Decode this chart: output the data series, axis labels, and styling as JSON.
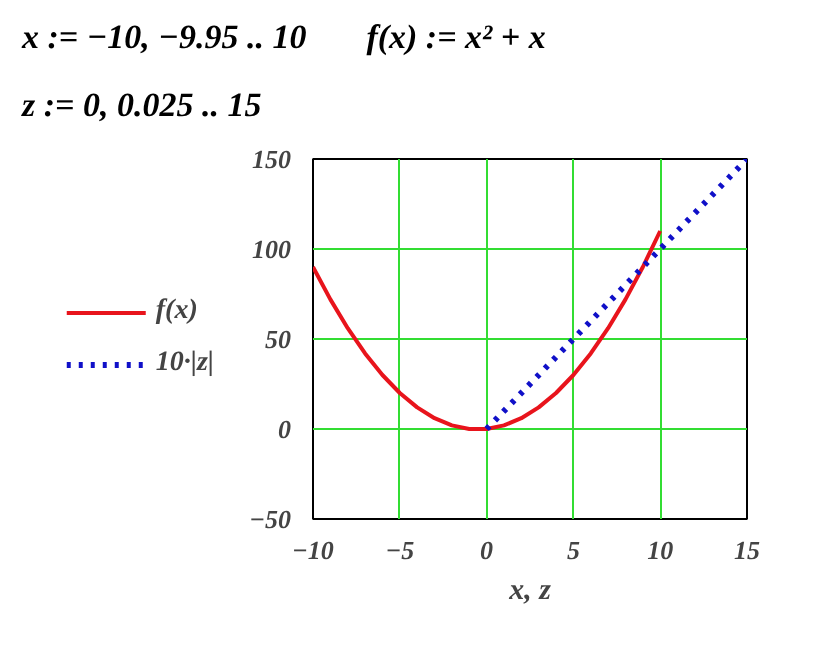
{
  "chart_data": {
    "type": "line",
    "annotations": [
      "x := −10, −9.95 .. 10",
      "f(x) := x² + x",
      "z := 0, 0.025 .. 15"
    ],
    "xlabel": "x, z",
    "xlim": [
      -10,
      15
    ],
    "xticks": [
      -10,
      -5,
      0,
      5,
      10,
      15
    ],
    "ylim": [
      -50,
      150
    ],
    "yticks": [
      -50,
      0,
      50,
      100,
      150
    ],
    "grid": true,
    "legend": "left",
    "series": [
      {
        "name": "f(x)",
        "color": "#e8141c",
        "line_style": "solid",
        "x": [
          -10,
          -9,
          -8,
          -7,
          -6,
          -5,
          -4,
          -3,
          -2,
          -1,
          0,
          1,
          2,
          3,
          4,
          5,
          6,
          7,
          8,
          9,
          10
        ],
        "values": [
          90,
          72,
          56,
          42,
          30,
          20,
          12,
          6,
          2,
          0,
          0,
          2,
          6,
          12,
          20,
          30,
          42,
          56,
          72,
          90,
          110
        ]
      },
      {
        "name": "10·|z|",
        "color": "#1010c8",
        "line_style": "dotted",
        "x": [
          0,
          5,
          10,
          15
        ],
        "values": [
          0,
          50,
          100,
          150
        ]
      }
    ]
  }
}
